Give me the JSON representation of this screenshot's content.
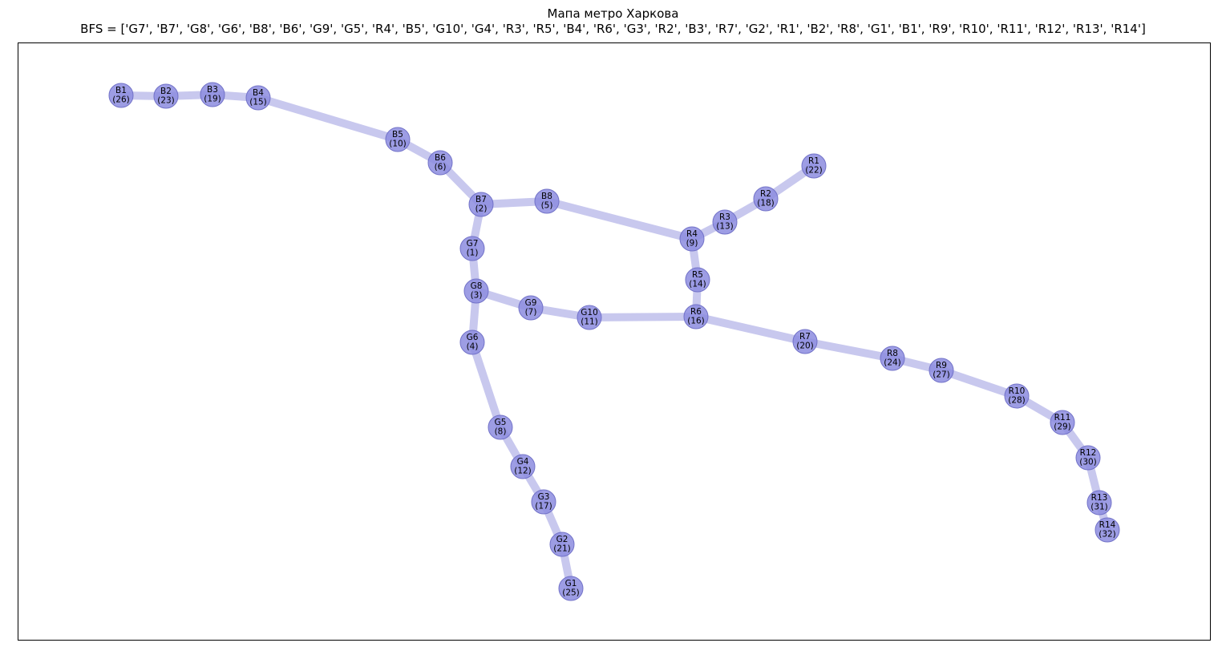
{
  "title": {
    "line1": "Мапа метро Харкова",
    "line2": "BFS = ['G7', 'B7', 'G8', 'G6', 'B8', 'B6', 'G9', 'G5', 'R4', 'B5', 'G10', 'G4', 'R3', 'R5', 'B4', 'R6', 'G3', 'R2', 'B3', 'R7', 'G2', 'R1', 'B2', 'R8', 'G1', 'B1', 'R9', 'R10', 'R11', 'R12', 'R13', 'R14']"
  },
  "colors": {
    "edge": "#c8c8ee",
    "node_fill": "#8c8cdf",
    "node_stroke": "#7272c8",
    "label": "#000000",
    "frame": "#000000"
  },
  "graph": {
    "nodes": [
      {
        "id": "B1",
        "order": "(26)"
      },
      {
        "id": "B2",
        "order": "(23)"
      },
      {
        "id": "B3",
        "order": "(19)"
      },
      {
        "id": "B4",
        "order": "(15)"
      },
      {
        "id": "B5",
        "order": "(10)"
      },
      {
        "id": "B6",
        "order": "(6)"
      },
      {
        "id": "B7",
        "order": "(2)"
      },
      {
        "id": "B8",
        "order": "(5)"
      },
      {
        "id": "G1",
        "order": "(25)"
      },
      {
        "id": "G2",
        "order": "(21)"
      },
      {
        "id": "G3",
        "order": "(17)"
      },
      {
        "id": "G4",
        "order": "(12)"
      },
      {
        "id": "G5",
        "order": "(8)"
      },
      {
        "id": "G6",
        "order": "(4)"
      },
      {
        "id": "G7",
        "order": "(1)"
      },
      {
        "id": "G8",
        "order": "(3)"
      },
      {
        "id": "G9",
        "order": "(7)"
      },
      {
        "id": "G10",
        "order": "(11)"
      },
      {
        "id": "R1",
        "order": "(22)"
      },
      {
        "id": "R2",
        "order": "(18)"
      },
      {
        "id": "R3",
        "order": "(13)"
      },
      {
        "id": "R4",
        "order": "(9)"
      },
      {
        "id": "R5",
        "order": "(14)"
      },
      {
        "id": "R6",
        "order": "(16)"
      },
      {
        "id": "R7",
        "order": "(20)"
      },
      {
        "id": "R8",
        "order": "(24)"
      },
      {
        "id": "R9",
        "order": "(27)"
      },
      {
        "id": "R10",
        "order": "(28)"
      },
      {
        "id": "R11",
        "order": "(29)"
      },
      {
        "id": "R12",
        "order": "(30)"
      },
      {
        "id": "R13",
        "order": "(31)"
      },
      {
        "id": "R14",
        "order": "(32)"
      }
    ],
    "edges": [
      [
        "B1",
        "B2"
      ],
      [
        "B2",
        "B3"
      ],
      [
        "B3",
        "B4"
      ],
      [
        "B4",
        "B5"
      ],
      [
        "B5",
        "B6"
      ],
      [
        "B6",
        "B7"
      ],
      [
        "B7",
        "B8"
      ],
      [
        "B8",
        "R4"
      ],
      [
        "B7",
        "G7"
      ],
      [
        "G7",
        "G8"
      ],
      [
        "G8",
        "G6"
      ],
      [
        "G8",
        "G9"
      ],
      [
        "G9",
        "G10"
      ],
      [
        "G10",
        "R6"
      ],
      [
        "G6",
        "G5"
      ],
      [
        "G5",
        "G4"
      ],
      [
        "G4",
        "G3"
      ],
      [
        "G3",
        "G2"
      ],
      [
        "G2",
        "G1"
      ],
      [
        "R1",
        "R2"
      ],
      [
        "R2",
        "R3"
      ],
      [
        "R3",
        "R4"
      ],
      [
        "R4",
        "R5"
      ],
      [
        "R5",
        "R6"
      ],
      [
        "R6",
        "R7"
      ],
      [
        "R7",
        "R8"
      ],
      [
        "R8",
        "R9"
      ],
      [
        "R9",
        "R10"
      ],
      [
        "R10",
        "R11"
      ],
      [
        "R11",
        "R12"
      ],
      [
        "R12",
        "R13"
      ],
      [
        "R13",
        "R14"
      ]
    ]
  }
}
